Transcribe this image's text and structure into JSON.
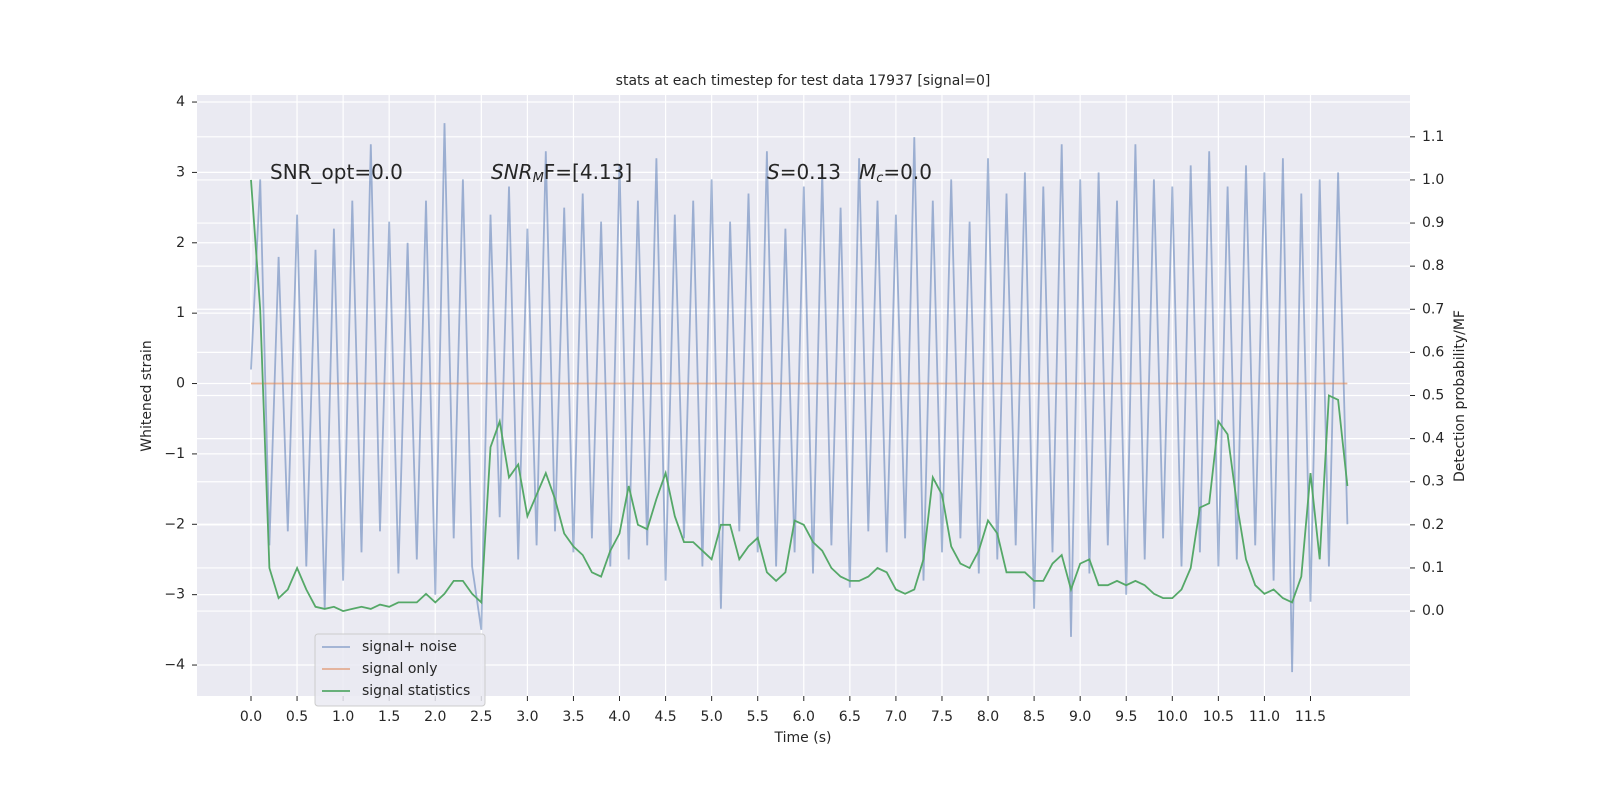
{
  "chart_data": {
    "type": "line",
    "title": "stats at each timestep for test data 17937 [signal=0]",
    "xlabel": "Time (s)",
    "ylabel": "Whitened strain",
    "y2label": "Detection probability/MF",
    "annotations": [
      {
        "text": "SNR_opt=0.0"
      },
      {
        "symbol": "SNR",
        "subscript": "M",
        "text": "F=[4.13]"
      },
      {
        "symbol": "S",
        "text": "=0.13"
      },
      {
        "symbol": "M",
        "subscript": "c",
        "text": "=0.0"
      }
    ],
    "grid": true,
    "legend": "lower left",
    "background": "#eaeaf2",
    "xlim": [
      -0.586,
      12.58
    ],
    "ylim": [
      -4.44,
      4.1
    ],
    "y2lim": [
      -0.197,
      1.197
    ],
    "xticks": [
      {
        "value": 0,
        "label": "0.0"
      },
      {
        "value": 0.5,
        "label": "0.5"
      },
      {
        "value": 1,
        "label": "1.0"
      },
      {
        "value": 1.5,
        "label": "1.5"
      },
      {
        "value": 2,
        "label": "2.0"
      },
      {
        "value": 2.5,
        "label": "2.5"
      },
      {
        "value": 3,
        "label": "3.0"
      },
      {
        "value": 3.5,
        "label": "3.5"
      },
      {
        "value": 4,
        "label": "4.0"
      },
      {
        "value": 4.5,
        "label": "4.5"
      },
      {
        "value": 5,
        "label": "5.0"
      },
      {
        "value": 5.5,
        "label": "5.5"
      },
      {
        "value": 6,
        "label": "6.0"
      },
      {
        "value": 6.5,
        "label": "6.5"
      },
      {
        "value": 7,
        "label": "7.0"
      },
      {
        "value": 7.5,
        "label": "7.5"
      },
      {
        "value": 8,
        "label": "8.0"
      },
      {
        "value": 8.5,
        "label": "8.5"
      },
      {
        "value": 9,
        "label": "9.0"
      },
      {
        "value": 9.5,
        "label": "9.5"
      },
      {
        "value": 10,
        "label": "10.0"
      },
      {
        "value": 10.5,
        "label": "10.5"
      },
      {
        "value": 11,
        "label": "11.0"
      },
      {
        "value": 11.5,
        "label": "11.5"
      }
    ],
    "yticks": [
      {
        "value": -4,
        "label": "−4"
      },
      {
        "value": -3,
        "label": "−3"
      },
      {
        "value": -2,
        "label": "−2"
      },
      {
        "value": -1,
        "label": "−1"
      },
      0,
      1,
      2,
      3,
      4
    ],
    "y2ticks": [
      {
        "value": 0,
        "label": "0.0"
      },
      {
        "value": 0.1,
        "label": "0.1"
      },
      {
        "value": 0.2,
        "label": "0.2"
      },
      {
        "value": 0.3,
        "label": "0.3"
      },
      {
        "value": 0.4,
        "label": "0.4"
      },
      {
        "value": 0.5,
        "label": "0.5"
      },
      {
        "value": 0.6,
        "label": "0.6"
      },
      {
        "value": 0.7,
        "label": "0.7"
      },
      {
        "value": 0.8,
        "label": "0.8"
      },
      {
        "value": 0.9,
        "label": "0.9"
      },
      {
        "value": 1,
        "label": "1.0"
      },
      {
        "value": 1.1,
        "label": "1.1"
      }
    ],
    "x": [
      0,
      0.1,
      0.2,
      0.3,
      0.4,
      0.5,
      0.6,
      0.7,
      0.8,
      0.9,
      1,
      1.1,
      1.2,
      1.3,
      1.4,
      1.5,
      1.6,
      1.7,
      1.8,
      1.9,
      2,
      2.1,
      2.2,
      2.3,
      2.4,
      2.5,
      2.6,
      2.7,
      2.8,
      2.9,
      3,
      3.1,
      3.2,
      3.3,
      3.4,
      3.5,
      3.6,
      3.7,
      3.8,
      3.9,
      4,
      4.1,
      4.2,
      4.3,
      4.4,
      4.5,
      4.6,
      4.7,
      4.8,
      4.9,
      5,
      5.1,
      5.2,
      5.3,
      5.4,
      5.5,
      5.6,
      5.7,
      5.8,
      5.9,
      6,
      6.1,
      6.2,
      6.3,
      6.4,
      6.5,
      6.6,
      6.7,
      6.8,
      6.9,
      7,
      7.1,
      7.2,
      7.3,
      7.4,
      7.5,
      7.6,
      7.7,
      7.8,
      7.9,
      8,
      8.1,
      8.2,
      8.3,
      8.4,
      8.5,
      8.6,
      8.7,
      8.8,
      8.9,
      9,
      9.1,
      9.2,
      9.3,
      9.4,
      9.5,
      9.6,
      9.7,
      9.8,
      9.9,
      10,
      10.1,
      10.2,
      10.3,
      10.4,
      10.5,
      10.6,
      10.7,
      10.8,
      10.9,
      11,
      11.1,
      11.2,
      11.3,
      11.4,
      11.5,
      11.6,
      11.7,
      11.8,
      11.9
    ],
    "series": [
      {
        "name": "signal+ noise",
        "color": "#4c72b0",
        "opacity": 0.5,
        "values": [
          0.2,
          2.9,
          -2.3,
          1.8,
          -2.1,
          2.4,
          -2.6,
          1.9,
          -3.2,
          2.2,
          -2.8,
          2.6,
          -2.4,
          3.4,
          -2.1,
          2.3,
          -2.7,
          2.0,
          -2.5,
          2.6,
          -3.0,
          3.7,
          -2.2,
          2.9,
          -2.6,
          -3.5,
          2.4,
          -1.9,
          2.8,
          -2.5,
          2.2,
          -2.3,
          3.3,
          -2.1,
          2.5,
          -2.4,
          2.7,
          -2.2,
          2.3,
          -2.6,
          3.1,
          -2.5,
          2.6,
          -2.3,
          3.2,
          -2.8,
          2.4,
          -2.2,
          2.6,
          -2.6,
          2.9,
          -3.2,
          2.3,
          -2.1,
          2.7,
          -2.4,
          3.3,
          -2.6,
          2.2,
          -2.4,
          2.8,
          -2.7,
          3.0,
          -2.3,
          2.5,
          -2.9,
          3.2,
          -2.1,
          2.6,
          -2.4,
          2.4,
          -2.2,
          3.5,
          -2.8,
          2.6,
          -2.4,
          2.9,
          -2.2,
          2.3,
          -2.7,
          3.2,
          -2.5,
          2.7,
          -2.3,
          3.0,
          -3.2,
          2.8,
          -2.4,
          3.4,
          -3.6,
          2.9,
          -2.7,
          3.0,
          -2.3,
          2.6,
          -3.0,
          3.4,
          -2.5,
          2.9,
          -2.2,
          2.8,
          -2.6,
          3.1,
          -2.4,
          3.3,
          -2.6,
          2.8,
          -2.5,
          3.1,
          -2.3,
          3.0,
          -2.8,
          3.2,
          -4.1,
          2.7,
          -3.1,
          2.9,
          -2.6,
          3.0,
          -2.0
        ]
      },
      {
        "name": "signal only",
        "color": "#dd8452",
        "opacity": 0.6,
        "values": [
          0,
          0,
          0,
          0,
          0,
          0,
          0,
          0,
          0,
          0,
          0,
          0,
          0,
          0,
          0,
          0,
          0,
          0,
          0,
          0,
          0,
          0,
          0,
          0,
          0,
          0,
          0,
          0,
          0,
          0,
          0,
          0,
          0,
          0,
          0,
          0,
          0,
          0,
          0,
          0,
          0,
          0,
          0,
          0,
          0,
          0,
          0,
          0,
          0,
          0,
          0,
          0,
          0,
          0,
          0,
          0,
          0,
          0,
          0,
          0,
          0,
          0,
          0,
          0,
          0,
          0,
          0,
          0,
          0,
          0,
          0,
          0,
          0,
          0,
          0,
          0,
          0,
          0,
          0,
          0,
          0,
          0,
          0,
          0,
          0,
          0,
          0,
          0,
          0,
          0,
          0,
          0,
          0,
          0,
          0,
          0,
          0,
          0,
          0,
          0,
          0,
          0,
          0,
          0,
          0,
          0,
          0,
          0,
          0,
          0,
          0,
          0,
          0,
          0,
          0,
          0,
          0,
          0,
          0,
          0
        ]
      },
      {
        "name": "signal statistics",
        "color": "#55a868",
        "opacity": 1,
        "axis": "y2",
        "values": [
          1.0,
          0.7,
          0.1,
          0.03,
          0.05,
          0.1,
          0.05,
          0.01,
          0.005,
          0.01,
          0.0,
          0.005,
          0.01,
          0.005,
          0.015,
          0.01,
          0.02,
          0.02,
          0.02,
          0.04,
          0.02,
          0.04,
          0.07,
          0.07,
          0.04,
          0.02,
          0.38,
          0.44,
          0.31,
          0.34,
          0.22,
          0.27,
          0.32,
          0.26,
          0.18,
          0.15,
          0.13,
          0.09,
          0.08,
          0.14,
          0.18,
          0.29,
          0.2,
          0.19,
          0.26,
          0.32,
          0.22,
          0.16,
          0.16,
          0.14,
          0.12,
          0.2,
          0.2,
          0.12,
          0.15,
          0.17,
          0.09,
          0.07,
          0.09,
          0.21,
          0.2,
          0.16,
          0.14,
          0.1,
          0.08,
          0.07,
          0.07,
          0.08,
          0.1,
          0.09,
          0.05,
          0.04,
          0.05,
          0.12,
          0.31,
          0.27,
          0.15,
          0.11,
          0.1,
          0.14,
          0.21,
          0.18,
          0.09,
          0.09,
          0.09,
          0.07,
          0.07,
          0.11,
          0.13,
          0.05,
          0.11,
          0.12,
          0.06,
          0.06,
          0.07,
          0.06,
          0.07,
          0.06,
          0.04,
          0.03,
          0.03,
          0.05,
          0.1,
          0.24,
          0.25,
          0.44,
          0.41,
          0.25,
          0.12,
          0.06,
          0.04,
          0.05,
          0.03,
          0.02,
          0.08,
          0.32,
          0.12,
          0.5,
          0.49,
          0.29
        ]
      }
    ]
  }
}
